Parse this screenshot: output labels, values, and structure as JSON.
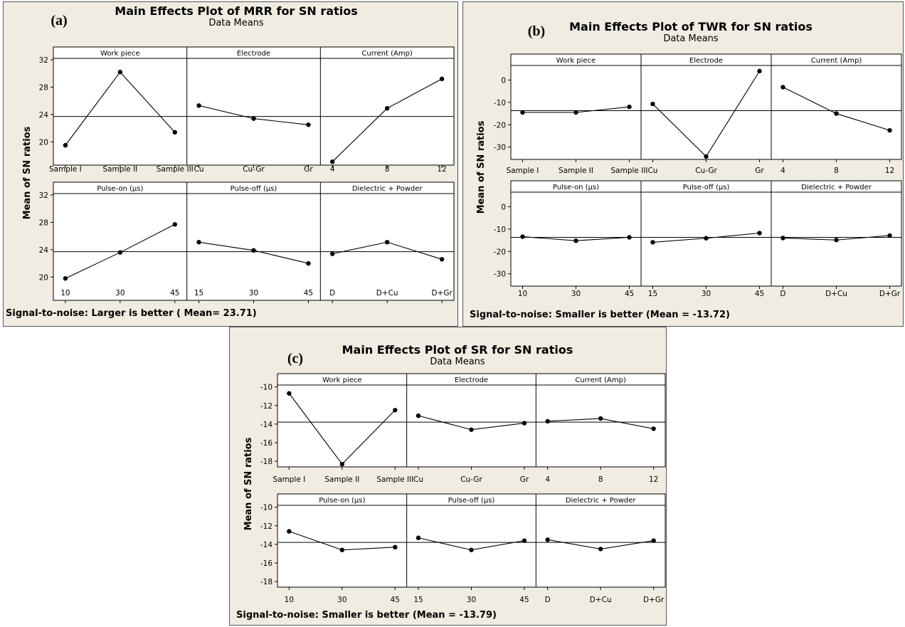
{
  "chart_data": [
    {
      "type": "line",
      "letter": "(a)",
      "title": "Main Effects Plot of MRR for SN ratios",
      "subtitle": "Data Means",
      "ylabel": "Mean of SN ratios",
      "footer": "Signal-to-noise: Larger is better ( Mean= 23.71)",
      "mean": 23.71,
      "ylim": [
        16.6,
        32.2
      ],
      "yticks": [
        20,
        24,
        28,
        32
      ],
      "yticklabels": [
        "20",
        "24",
        "28",
        "32"
      ],
      "factors": [
        {
          "name": "Work piece",
          "levels": [
            "Sample I",
            "Sample II",
            "Sample III"
          ],
          "values": [
            19.5,
            30.2,
            21.4
          ]
        },
        {
          "name": "Electrode",
          "levels": [
            "Cu",
            "Cu-Gr",
            "Gr"
          ],
          "values": [
            25.3,
            23.4,
            22.5
          ]
        },
        {
          "name": "Current (Amp)",
          "levels": [
            "4",
            "8",
            "12"
          ],
          "values": [
            17.1,
            24.9,
            29.2
          ]
        },
        {
          "name": "Pulse-on (µs)",
          "levels": [
            "10",
            "30",
            "45"
          ],
          "values": [
            19.8,
            23.6,
            27.7
          ]
        },
        {
          "name": "Pulse-off (µs)",
          "levels": [
            "15",
            "30",
            "45"
          ],
          "values": [
            25.1,
            23.9,
            22.0
          ]
        },
        {
          "name": "Dielectric + Powder",
          "levels": [
            "D",
            "D+Cu",
            "D+Gr"
          ],
          "values": [
            23.4,
            25.1,
            22.6
          ]
        }
      ]
    },
    {
      "type": "line",
      "letter": "(b)",
      "title": "Main Effects Plot of TWR  for SN ratios",
      "subtitle": "Data Means",
      "ylabel": "Mean of SN ratios",
      "footer": "Signal-to-noise: Smaller is better (Mean = -13.72)",
      "mean": -13.72,
      "ylim": [
        -35.5,
        6.5
      ],
      "yticks": [
        -30,
        -20,
        -10,
        0
      ],
      "yticklabels": [
        "-30",
        "-20",
        "-10",
        "0"
      ],
      "factors": [
        {
          "name": "Work piece",
          "levels": [
            "Sample I",
            "Sample II",
            "Sample III"
          ],
          "values": [
            -14.5,
            -14.5,
            -12.0
          ]
        },
        {
          "name": "Electrode",
          "levels": [
            "Cu",
            "Cu-Gr",
            "Gr"
          ],
          "values": [
            -10.7,
            -34.2,
            4.0
          ]
        },
        {
          "name": "Current (Amp)",
          "levels": [
            "4",
            "8",
            "12"
          ],
          "values": [
            -3.2,
            -15.0,
            -22.5
          ]
        },
        {
          "name": "Pulse-on (µs)",
          "levels": [
            "10",
            "30",
            "45"
          ],
          "values": [
            -13.4,
            -15.2,
            -13.7
          ]
        },
        {
          "name": "Pulse-off (µs)",
          "levels": [
            "15",
            "30",
            "45"
          ],
          "values": [
            -15.9,
            -14.1,
            -11.8
          ]
        },
        {
          "name": "Dielectric + Powder",
          "levels": [
            "D",
            "D+Cu",
            "D+Gr"
          ],
          "values": [
            -14.0,
            -14.9,
            -12.9
          ]
        }
      ]
    },
    {
      "type": "line",
      "letter": "(c)",
      "title": "Main Effects Plot of SR for SN ratios",
      "subtitle": "Data Means",
      "ylabel": "Mean of SN ratios",
      "footer": "Signal-to-noise: Smaller is better (Mean = -13.79)",
      "mean": -13.79,
      "ylim": [
        -18.6,
        -9.8
      ],
      "yticks": [
        -18,
        -16,
        -14,
        -12,
        -10
      ],
      "yticklabels": [
        "-18",
        "-16",
        "-14",
        "-12",
        "-10"
      ],
      "factors": [
        {
          "name": "Work piece",
          "levels": [
            "Sample I",
            "Sample II",
            "Sample III"
          ],
          "values": [
            -10.7,
            -18.3,
            -12.5
          ]
        },
        {
          "name": "Electrode",
          "levels": [
            "Cu",
            "Cu-Gr",
            "Gr"
          ],
          "values": [
            -13.1,
            -14.6,
            -13.9
          ]
        },
        {
          "name": "Current (Amp)",
          "levels": [
            "4",
            "8",
            "12"
          ],
          "values": [
            -13.7,
            -13.4,
            -14.5
          ]
        },
        {
          "name": "Pulse-on (µs)",
          "levels": [
            "10",
            "30",
            "45"
          ],
          "values": [
            -12.6,
            -14.6,
            -14.3
          ]
        },
        {
          "name": "Pulse-off (µs)",
          "levels": [
            "15",
            "30",
            "45"
          ],
          "values": [
            -13.3,
            -14.6,
            -13.6
          ]
        },
        {
          "name": "Dielectric + Powder",
          "levels": [
            "D",
            "D+Cu",
            "D+Gr"
          ],
          "values": [
            -13.5,
            -14.5,
            -13.6
          ]
        }
      ]
    }
  ]
}
